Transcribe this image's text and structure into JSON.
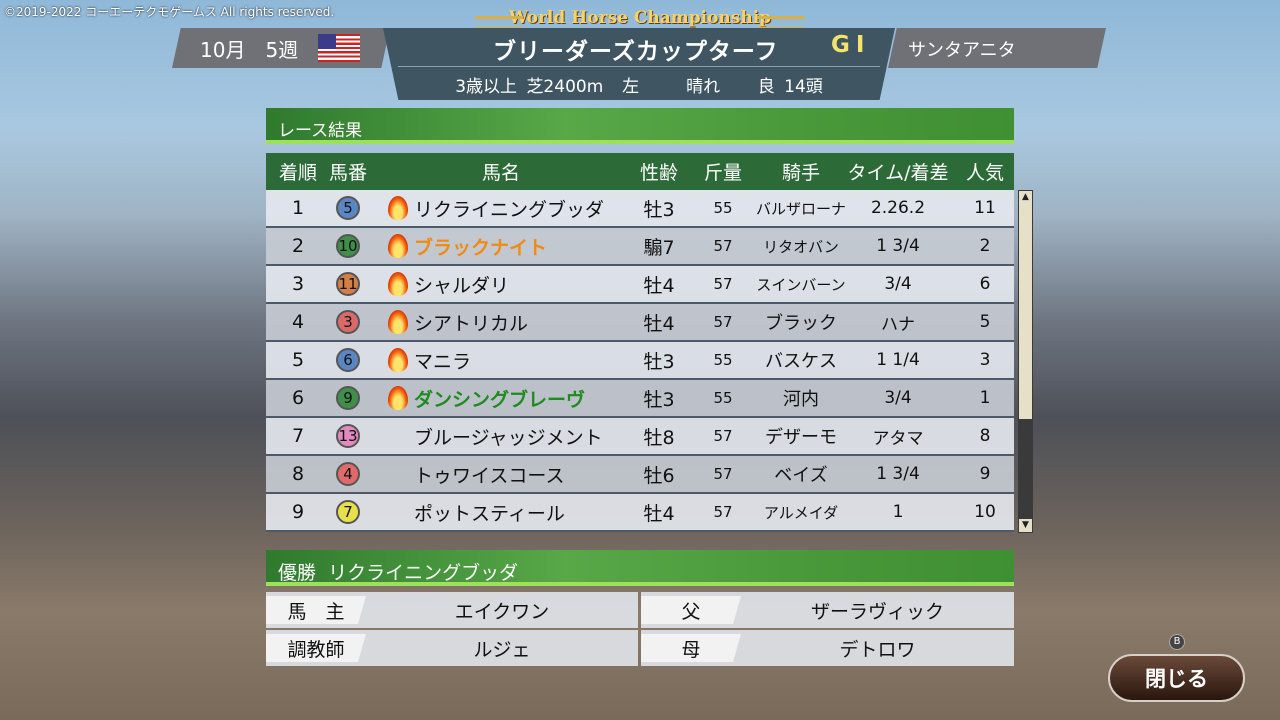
{
  "copyright": "©2019-2022 コーエーテクモゲームス All rights reserved.",
  "logo": "World Horse Championship",
  "header": {
    "month": "10月",
    "week": "5週",
    "flag": "us-flag-icon",
    "race_name": "ブリーダーズカップターフ",
    "grade": "GⅠ",
    "venue": "サンタアニタ",
    "conditions": {
      "age": "3歳以上",
      "surface": "芝2400m",
      "direction": "左",
      "weather": "晴れ",
      "going": "良",
      "runners": "14頭"
    }
  },
  "results": {
    "title": "レース結果",
    "columns": [
      "着順",
      "馬番",
      "馬名",
      "性齢",
      "斤量",
      "騎手",
      "タイム/着差",
      "人気"
    ],
    "rows": [
      {
        "pos": "1",
        "num": "5",
        "color": "#5b86c4",
        "flame": true,
        "name": "リクライニングブッダ",
        "name_color": "#111",
        "sexage": "牡3",
        "weight": "55",
        "jockey": "バルザローナ",
        "time": "2.26.2",
        "pop": "11"
      },
      {
        "pos": "2",
        "num": "10",
        "color": "#3f8f4a",
        "flame": true,
        "name": "ブラックナイト",
        "name_color": "#f08a10",
        "sexage": "騸7",
        "weight": "57",
        "jockey": "リタオバン",
        "time": "1 3/4",
        "pop": "2"
      },
      {
        "pos": "3",
        "num": "11",
        "color": "#d28048",
        "flame": true,
        "name": "シャルダリ",
        "name_color": "#111",
        "sexage": "牡4",
        "weight": "57",
        "jockey": "スインバーン",
        "time": "3/4",
        "pop": "6"
      },
      {
        "pos": "4",
        "num": "3",
        "color": "#d86a6a",
        "flame": true,
        "name": "シアトリカル",
        "name_color": "#111",
        "sexage": "牡4",
        "weight": "57",
        "jockey": "ブラック",
        "time": "ハナ",
        "pop": "5"
      },
      {
        "pos": "5",
        "num": "6",
        "color": "#5b86c4",
        "flame": true,
        "name": "マニラ",
        "name_color": "#111",
        "sexage": "牡3",
        "weight": "55",
        "jockey": "バスケス",
        "time": "1 1/4",
        "pop": "3"
      },
      {
        "pos": "6",
        "num": "9",
        "color": "#3f8f4a",
        "flame": true,
        "name": "ダンシングブレーヴ",
        "name_color": "#1f8a1f",
        "sexage": "牡3",
        "weight": "55",
        "jockey": "河内",
        "time": "3/4",
        "pop": "1"
      },
      {
        "pos": "7",
        "num": "13",
        "color": "#e08ac0",
        "flame": false,
        "name": "ブルージャッジメント",
        "name_color": "#111",
        "sexage": "牡8",
        "weight": "57",
        "jockey": "デザーモ",
        "time": "アタマ",
        "pop": "8"
      },
      {
        "pos": "8",
        "num": "4",
        "color": "#e06a6a",
        "flame": false,
        "name": "トゥワイスコース",
        "name_color": "#111",
        "sexage": "牡6",
        "weight": "57",
        "jockey": "ベイズ",
        "time": "1 3/4",
        "pop": "9"
      },
      {
        "pos": "9",
        "num": "7",
        "color": "#e8e04a",
        "flame": false,
        "name": "ポットスティール",
        "name_color": "#111",
        "sexage": "牡4",
        "weight": "57",
        "jockey": "アルメイダ",
        "time": "1",
        "pop": "10"
      }
    ]
  },
  "winner": {
    "label": "優勝",
    "name": "リクライニングブッダ",
    "owner_label": "馬　主",
    "owner": "エイクワン",
    "trainer_label": "調教師",
    "trainer": "ルジェ",
    "sire_label": "父",
    "sire": "ザーラヴィック",
    "dam_label": "母",
    "dam": "デトロワ"
  },
  "close": {
    "badge": "B",
    "label": "閉じる"
  }
}
